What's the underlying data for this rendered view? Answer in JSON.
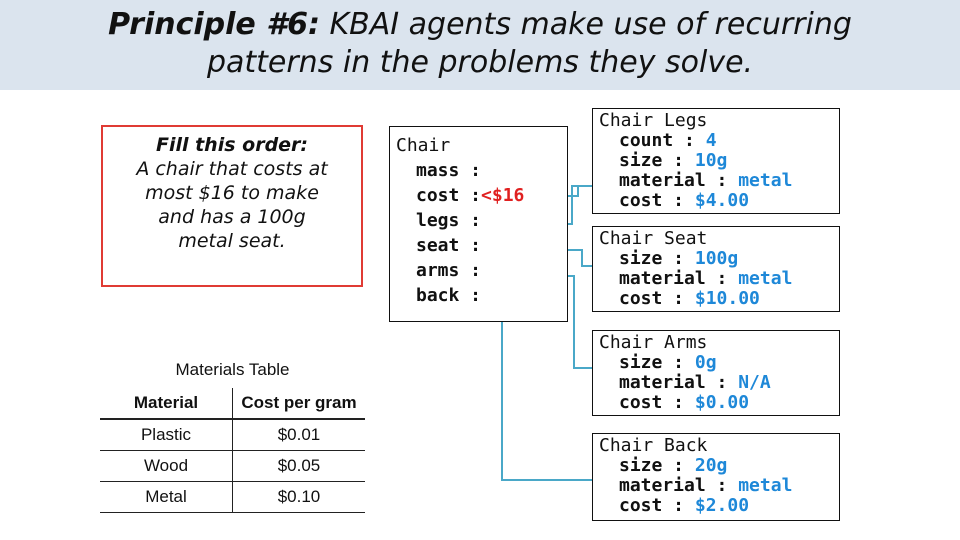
{
  "title": {
    "principle": "Principle #6:",
    "line1_rest": "KBAI agents make use of recurring",
    "line2": "patterns in the problems they solve."
  },
  "order": {
    "heading": "Fill this order:",
    "line1": "A chair that costs at",
    "line2": "most $16 to make",
    "line3": "and has a 100g",
    "line4": "metal seat."
  },
  "materials_table": {
    "caption": "Materials Table",
    "headers": [
      "Material",
      "Cost per gram"
    ],
    "rows": [
      [
        "Plastic",
        "$0.01"
      ],
      [
        "Wood",
        "$0.05"
      ],
      [
        "Metal",
        "$0.10"
      ]
    ]
  },
  "chair_frame": {
    "name": "Chair",
    "slots": {
      "mass": "mass :",
      "cost": "cost :",
      "cost_value": "<$16",
      "legs": "legs :",
      "seat": "seat :",
      "arms": "arms :",
      "back": "back :"
    }
  },
  "legs_frame": {
    "name": "Chair Legs",
    "count": "count : ",
    "count_value": "4",
    "size": "size : ",
    "size_value": "10g",
    "material": "material : ",
    "material_value": "metal",
    "cost": "cost : ",
    "cost_value": "$4.00"
  },
  "seat_frame": {
    "name": "Chair Seat",
    "size": "size : ",
    "size_value": "100g",
    "material": "material : ",
    "material_value": "metal",
    "cost": "cost : ",
    "cost_value": "$10.00"
  },
  "arms_frame": {
    "name": "Chair Arms",
    "size": "size : ",
    "size_value": "0g",
    "material": "material : ",
    "material_value": "N/A",
    "cost": "cost : ",
    "cost_value": "$0.00"
  },
  "back_frame": {
    "name": "Chair Back",
    "size": "size : ",
    "size_value": "20g",
    "material": "material : ",
    "material_value": "metal",
    "cost": "cost : ",
    "cost_value": "$2.00"
  },
  "colors": {
    "banner": "#dbe4ee",
    "order_border": "#e03b34",
    "value_blue": "#1e88d8",
    "value_red": "#e02020",
    "connector": "#4aa8c8"
  }
}
